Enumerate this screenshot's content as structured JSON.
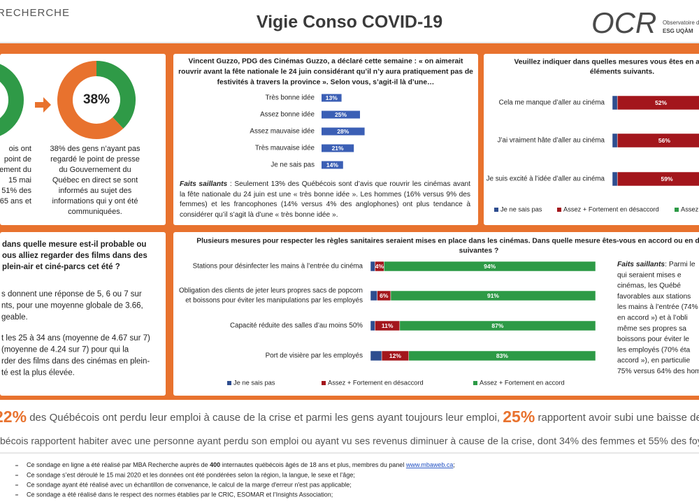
{
  "header": {
    "brand": "RECHERCHE",
    "title": "Vigie Conso COVID-19",
    "logo": "OCR",
    "logo_line1": "Observatoire de",
    "logo_line2": "ESG UQÀM"
  },
  "panel_donut": {
    "left_text": [
      "ois ont",
      "point de",
      "ement du",
      "15 mai",
      "51% des",
      "65 ans et"
    ],
    "right_text": [
      "38% des gens n’ayant pas",
      "regardé le point de presse",
      "du Gouvernement du",
      "Québec en direct se sont",
      "informés au sujet des",
      "informations qui y ont été",
      "communiquées."
    ]
  },
  "panel_guzzo": {
    "highlights_label": "Faits saillants",
    "highlights_text": " : Seulement 13% des Québécois sont d’avis que rouvrir les cinémas avant la fête nationale du 24 juin est une « très bonne idée ». Les hommes (16% versus 9% des femmes) et les francophones (14% versus 4% des anglophones) ont plus tendance à considérer qu’il s’agit là d’une « très bonne idée »."
  },
  "panel_question": {
    "title": [
      "dans quelle mesure est-il probable ou",
      "ous alliez regarder des films dans des",
      "plein-air et ciné-parcs cet été ?"
    ],
    "paragraphs": [
      [
        "s donnent une réponse de 5, 6 ou 7 sur",
        "nts, pour une moyenne globale de 3.66,",
        "geable."
      ],
      [
        "t les 25 à 34 ans (moyenne de 4.67 sur 7)",
        "(moyenne de 4.24 sur 7) pour qui la",
        "rder des films dans des cinémas en plein-",
        "té est la plus élevée."
      ]
    ]
  },
  "panel_measures": {
    "highlights_label": "Faits saillants",
    "highlights_lines": [
      ": Parmi le",
      "qui seraient mises e",
      "cinémas, les Québé",
      "favorables aux stations",
      "les mains à l’entrée (74%",
      "en accord ») et à l’obli",
      "même ses propres sa",
      "boissons pour éviter le",
      "les employés (70% éta",
      "accord »), en particulie",
      "75% versus 64% des hom"
    ]
  },
  "banner": {
    "line1": [
      "22%",
      " des Québécois ont perdu leur emploi à cause de la crise et parmi les gens ayant toujours leur emploi, ",
      "25%",
      " rapportent avoir subi une baisse de leurs revenu"
    ],
    "line2": "bécois rapportent habiter avec une personne ayant perdu son emploi ou ayant vu ses revenus diminuer à cause de la crise, dont 34% des femmes et 55% des foyers"
  },
  "footer": {
    "line1": [
      "Ce sondage en ligne a été réalisé par MBA Recherche auprès de ",
      "400",
      " internautes québécois âgés de 18 ans et plus, membres du panel ",
      "www.mbaweb.ca",
      ";"
    ],
    "lines": [
      "Ce sondage s’est déroulé le 15 mai 2020 et les données ont été pondérées selon la région, la langue, le sexe et l’âge;",
      "Ce sondage ayant été réalisé avec un échantillon de convenance, le calcul de la marge d'erreur n'est pas applicable;",
      "Ce sondage a été réalisé dans le respect des normes établies par le CRIC, ESOMAR et l’Insights Association;"
    ]
  },
  "chart_data": [
    {
      "type": "pie",
      "categories": [
        null,
        null
      ],
      "values": [
        38,
        62
      ],
      "value_labels": [
        "38%",
        null
      ],
      "colors": [
        "#2f9a47",
        "#e8722e"
      ]
    },
    {
      "type": "bar",
      "orientation": "horizontal",
      "title": [
        "Vincent Guzzo, PDG des Cinémas Guzzo, a déclaré cette semaine : « on aimerait",
        "rouvrir avant la fête nationale le 24 juin considérant qu’il n’y aura pratiquement pas de",
        "festivités à travers la province ». Selon vous, s’agit-il là d’une…"
      ],
      "categories": [
        "Très bonne idée",
        "Assez bonne idée",
        "Assez mauvaise idée",
        "Très mauvaise idée",
        "Je ne sais pas"
      ],
      "values": [
        13,
        25,
        28,
        21,
        14
      ],
      "value_labels": [
        "13%",
        "25%",
        "28%",
        "21%",
        "14%"
      ],
      "color": "#3b5fb5"
    },
    {
      "type": "stacked_bar",
      "orientation": "horizontal",
      "title": [
        "Veuillez indiquer dans quelles mesures vous êtes en accord ou",
        "éléments suivants."
      ],
      "categories": [
        [
          "Cela me manque d’aller au cinéma"
        ],
        [
          "J’ai vraiment hâte d’aller au cinéma"
        ],
        [
          "Je suis excité à l’idée d’aller au cinéma"
        ]
      ],
      "series": [
        {
          "name": "Je ne sais pas",
          "color": "#2e4d8f",
          "values": [
            3,
            3,
            3
          ]
        },
        {
          "name": "Assez + Fortement en désaccord",
          "color": "#a3161c",
          "values": [
            52,
            56,
            59
          ],
          "value_labels": [
            "52%",
            "56%",
            "59%"
          ]
        },
        {
          "name": "Assez + Fortement en accord",
          "color": "#2d9a46",
          "values": [
            45,
            41,
            38
          ]
        }
      ]
    },
    {
      "type": "stacked_bar",
      "orientation": "horizontal",
      "title": [
        "Plusieurs mesures pour respecter les règles sanitaires seraient mises en place dans les cinémas. Dans quelle mesure êtes-vous en accord ou en désaccord avec les",
        "suivantes ?"
      ],
      "categories": [
        [
          "Stations pour désinfecter les mains à l’entrée du cinéma"
        ],
        [
          "Obligation des clients de jeter leurs propres sacs de popcorn",
          "et boissons pour éviter les manipulations par les employés"
        ],
        [
          "Capacité réduite des salles d’au moins 50%"
        ],
        [
          "Port de visière par les employés"
        ]
      ],
      "series": [
        {
          "name": "Je ne sais pas",
          "color": "#2e4d8f",
          "values": [
            2,
            3,
            2,
            5
          ]
        },
        {
          "name": "Assez + Fortement en désaccord",
          "color": "#a3161c",
          "values": [
            4,
            6,
            11,
            12
          ],
          "value_labels": [
            "4%",
            "6%",
            "11%",
            "12%"
          ]
        },
        {
          "name": "Assez + Fortement en accord",
          "color": "#2d9a46",
          "values": [
            94,
            91,
            87,
            83
          ],
          "value_labels": [
            "94%",
            "91%",
            "87%",
            "83%"
          ]
        }
      ]
    }
  ]
}
